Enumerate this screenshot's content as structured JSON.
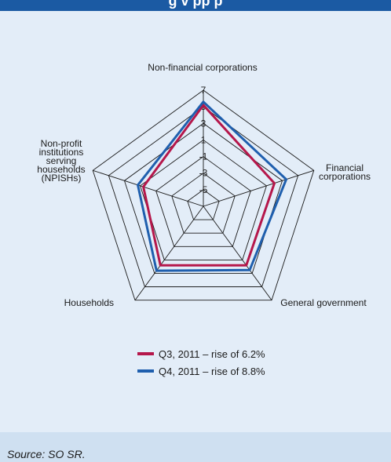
{
  "header": {
    "title": "g   v pp   p"
  },
  "chart_data": {
    "type": "radar",
    "categories": [
      "Non-financial corporations",
      "Financial corporations",
      "General government",
      "Households",
      "Non-profit institutions serving households (NPISHs)"
    ],
    "category_label_lines": [
      [
        "Non-financial corporations"
      ],
      [
        "Financial",
        "corporations"
      ],
      [
        "General government"
      ],
      [
        "Households"
      ],
      [
        "Non-profit",
        "institutions",
        "serving",
        "households",
        "(NPISHs)"
      ]
    ],
    "r_ticks": [
      -5,
      -3,
      -1,
      1,
      3,
      5,
      7
    ],
    "r_tick_labels": [
      "-5",
      "-3",
      "-1",
      "1",
      "3",
      "5",
      "7"
    ],
    "rlim": [
      -7,
      7
    ],
    "grid": true,
    "legend_position": "bottom",
    "series": [
      {
        "name": "Q3, 2011 – rise of 6.2%",
        "color": "#b5174b",
        "values": [
          5.2,
          2.0,
          1.8,
          1.8,
          0.6
        ]
      },
      {
        "name": "Q4, 2011 – rise of 8.8%",
        "color": "#1f5fae",
        "values": [
          5.6,
          3.5,
          2.5,
          2.6,
          1.3
        ]
      }
    ]
  },
  "footer": {
    "source": "Source: SO SR."
  }
}
